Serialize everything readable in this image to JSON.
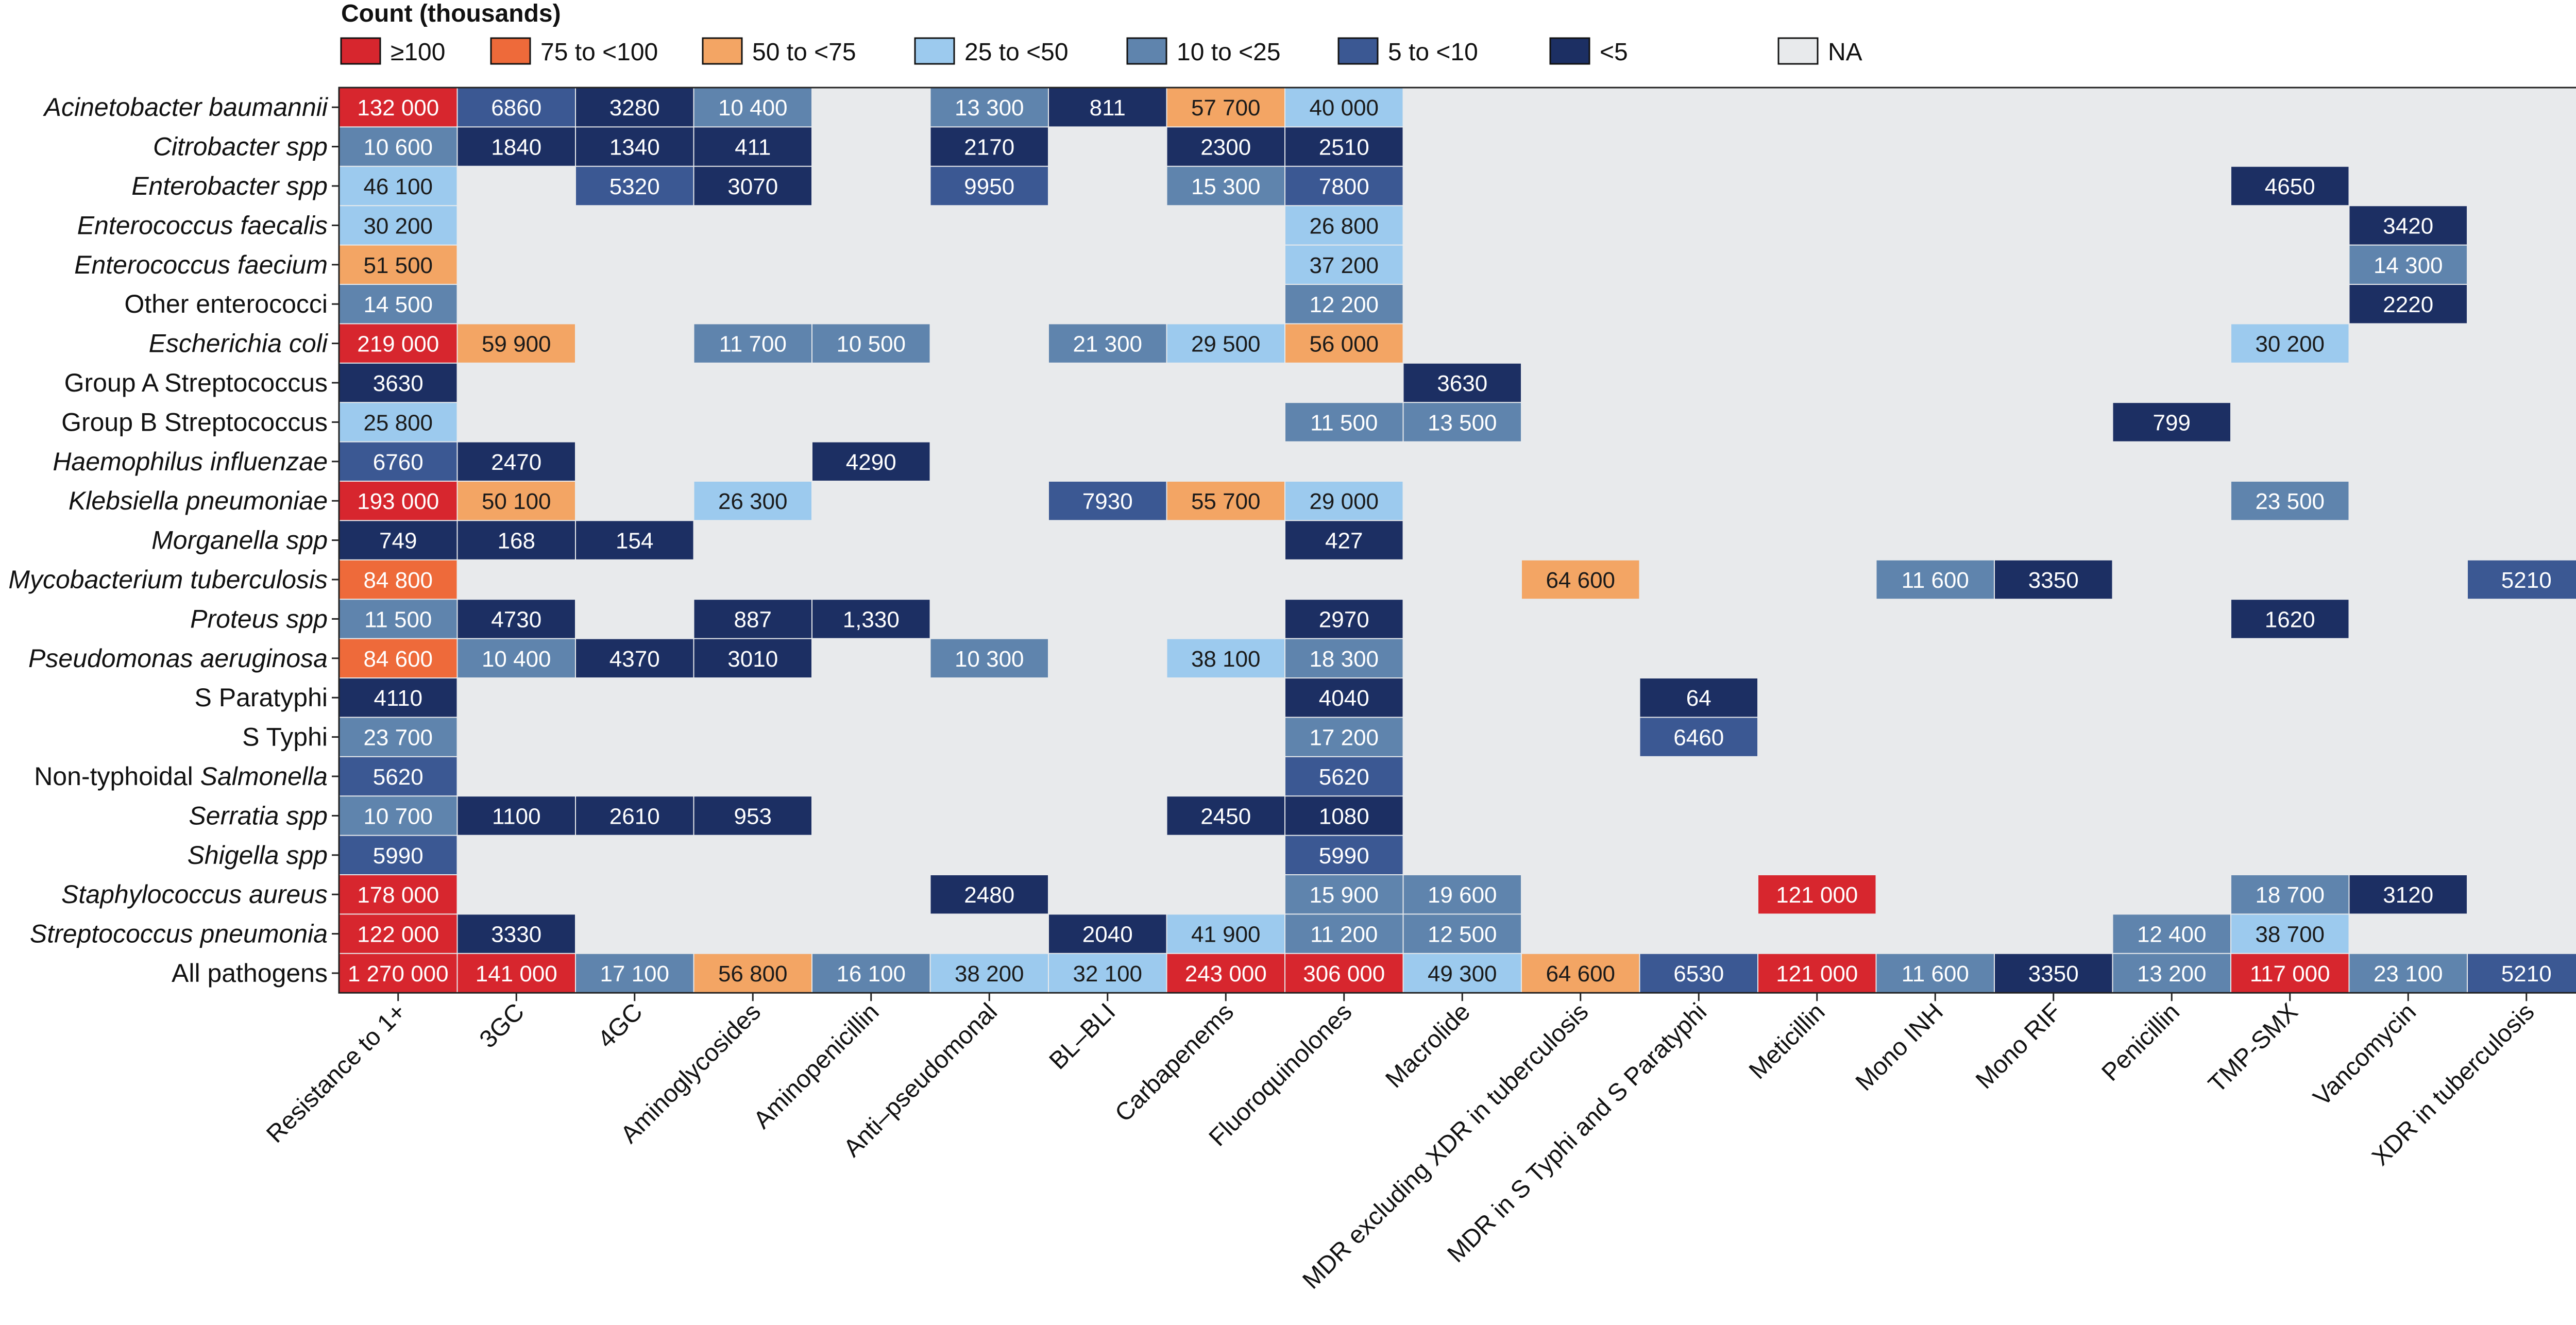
{
  "chart_data": {
    "type": "heatmap",
    "legend": {
      "title": "Count (thousands)",
      "position": "top",
      "items": [
        {
          "label": "≥100",
          "color": "#d7262e"
        },
        {
          "label": "75 to <100",
          "color": "#ee6a3a"
        },
        {
          "label": "50 to <75",
          "color": "#f3a564"
        },
        {
          "label": "25 to <50",
          "color": "#9ccaee"
        },
        {
          "label": "10 to <25",
          "color": "#5f84ad"
        },
        {
          "label": "5 to <10",
          "color": "#3b5893"
        },
        {
          "label": "<5",
          "color": "#1c2f63"
        },
        {
          "label": "NA",
          "color": "#e8eaec"
        }
      ]
    },
    "columns": [
      "Resistance to 1+",
      "3GC",
      "4GC",
      "Aminoglycosides",
      "Aminopenicillin",
      "Anti–pseudomonal",
      "BL–BLI",
      "Carbapenems",
      "Fluoroquinolones",
      "Macrolide",
      "MDR excluding XDR in tuberculosis",
      "MDR in S Typhi and S Paratyphi",
      "Meticillin",
      "Mono INH",
      "Mono RIF",
      "Penicillin",
      "TMP-SMX",
      "Vancomycin",
      "XDR in tuberculosis"
    ],
    "rows": [
      {
        "name": "Acinetobacter baumannii",
        "italic": true,
        "cells": [
          {
            "col": 0,
            "label": "132 000",
            "value": 132000
          },
          {
            "col": 1,
            "label": "6860",
            "value": 6860
          },
          {
            "col": 2,
            "label": "3280",
            "value": 3280
          },
          {
            "col": 3,
            "label": "10 400",
            "value": 10400
          },
          {
            "col": 5,
            "label": "13 300",
            "value": 13300
          },
          {
            "col": 6,
            "label": "811",
            "value": 811
          },
          {
            "col": 7,
            "label": "57 700",
            "value": 57700
          },
          {
            "col": 8,
            "label": "40 000",
            "value": 40000
          }
        ]
      },
      {
        "name": "Citrobacter spp",
        "italic": true,
        "cells": [
          {
            "col": 0,
            "label": "10 600",
            "value": 10600
          },
          {
            "col": 1,
            "label": "1840",
            "value": 1840
          },
          {
            "col": 2,
            "label": "1340",
            "value": 1340
          },
          {
            "col": 3,
            "label": "411",
            "value": 411
          },
          {
            "col": 5,
            "label": "2170",
            "value": 2170
          },
          {
            "col": 7,
            "label": "2300",
            "value": 2300
          },
          {
            "col": 8,
            "label": "2510",
            "value": 2510
          }
        ]
      },
      {
        "name": "Enterobacter spp",
        "italic": true,
        "cells": [
          {
            "col": 0,
            "label": "46 100",
            "value": 46100
          },
          {
            "col": 2,
            "label": "5320",
            "value": 5320
          },
          {
            "col": 3,
            "label": "3070",
            "value": 3070
          },
          {
            "col": 5,
            "label": "9950",
            "value": 9950
          },
          {
            "col": 7,
            "label": "15 300",
            "value": 15300
          },
          {
            "col": 8,
            "label": "7800",
            "value": 7800
          },
          {
            "col": 16,
            "label": "4650",
            "value": 4650
          }
        ]
      },
      {
        "name": "Enterococcus faecalis",
        "italic": true,
        "cells": [
          {
            "col": 0,
            "label": "30 200",
            "value": 30200
          },
          {
            "col": 8,
            "label": "26 800",
            "value": 26800
          },
          {
            "col": 17,
            "label": "3420",
            "value": 3420
          }
        ]
      },
      {
        "name": "Enterococcus faecium",
        "italic": true,
        "cells": [
          {
            "col": 0,
            "label": "51 500",
            "value": 51500
          },
          {
            "col": 8,
            "label": "37 200",
            "value": 37200
          },
          {
            "col": 17,
            "label": "14 300",
            "value": 14300
          }
        ]
      },
      {
        "name": "Other enterococci",
        "italic": false,
        "cells": [
          {
            "col": 0,
            "label": "14 500",
            "value": 14500
          },
          {
            "col": 8,
            "label": "12 200",
            "value": 12200
          },
          {
            "col": 17,
            "label": "2220",
            "value": 2220
          }
        ]
      },
      {
        "name": "Escherichia coli",
        "italic": true,
        "cells": [
          {
            "col": 0,
            "label": "219 000",
            "value": 219000
          },
          {
            "col": 1,
            "label": "59 900",
            "value": 59900
          },
          {
            "col": 3,
            "label": "11 700",
            "value": 11700
          },
          {
            "col": 4,
            "label": "10 500",
            "value": 10500
          },
          {
            "col": 6,
            "label": "21 300",
            "value": 21300
          },
          {
            "col": 7,
            "label": "29 500",
            "value": 29500
          },
          {
            "col": 8,
            "label": "56 000",
            "value": 56000
          },
          {
            "col": 16,
            "label": "30 200",
            "value": 30200
          }
        ]
      },
      {
        "name": "Group A Streptococcus",
        "italic": false,
        "cells": [
          {
            "col": 0,
            "label": "3630",
            "value": 3630
          },
          {
            "col": 9,
            "label": "3630",
            "value": 3630
          }
        ]
      },
      {
        "name": "Group B Streptococcus",
        "italic": false,
        "cells": [
          {
            "col": 0,
            "label": "25 800",
            "value": 25800
          },
          {
            "col": 8,
            "label": "11 500",
            "value": 11500
          },
          {
            "col": 9,
            "label": "13 500",
            "value": 13500
          },
          {
            "col": 15,
            "label": "799",
            "value": 799
          }
        ]
      },
      {
        "name": "Haemophilus influenzae",
        "italic": true,
        "cells": [
          {
            "col": 0,
            "label": "6760",
            "value": 6760
          },
          {
            "col": 1,
            "label": "2470",
            "value": 2470
          },
          {
            "col": 4,
            "label": "4290",
            "value": 4290
          }
        ]
      },
      {
        "name": "Klebsiella pneumoniae",
        "italic": true,
        "cells": [
          {
            "col": 0,
            "label": "193 000",
            "value": 193000
          },
          {
            "col": 1,
            "label": "50 100",
            "value": 50100
          },
          {
            "col": 3,
            "label": "26 300",
            "value": 26300
          },
          {
            "col": 6,
            "label": "7930",
            "value": 7930
          },
          {
            "col": 7,
            "label": "55 700",
            "value": 55700
          },
          {
            "col": 8,
            "label": "29 000",
            "value": 29000
          },
          {
            "col": 16,
            "label": "23 500",
            "value": 23500
          }
        ]
      },
      {
        "name": "Morganella spp",
        "italic": true,
        "cells": [
          {
            "col": 0,
            "label": "749",
            "value": 749
          },
          {
            "col": 1,
            "label": "168",
            "value": 168
          },
          {
            "col": 2,
            "label": "154",
            "value": 154
          },
          {
            "col": 8,
            "label": "427",
            "value": 427
          }
        ]
      },
      {
        "name": "Mycobacterium tuberculosis",
        "italic": true,
        "cells": [
          {
            "col": 0,
            "label": "84 800",
            "value": 84800
          },
          {
            "col": 10,
            "label": "64 600",
            "value": 64600
          },
          {
            "col": 13,
            "label": "11 600",
            "value": 11600
          },
          {
            "col": 14,
            "label": "3350",
            "value": 3350
          },
          {
            "col": 18,
            "label": "5210",
            "value": 5210
          }
        ]
      },
      {
        "name": "Proteus spp",
        "italic": true,
        "cells": [
          {
            "col": 0,
            "label": "11 500",
            "value": 11500
          },
          {
            "col": 1,
            "label": "4730",
            "value": 4730
          },
          {
            "col": 3,
            "label": "887",
            "value": 887
          },
          {
            "col": 4,
            "label": "1,330",
            "value": 1330
          },
          {
            "col": 8,
            "label": "2970",
            "value": 2970
          },
          {
            "col": 16,
            "label": "1620",
            "value": 1620
          }
        ]
      },
      {
        "name": "Pseudomonas aeruginosa",
        "italic": true,
        "cells": [
          {
            "col": 0,
            "label": "84 600",
            "value": 84600
          },
          {
            "col": 1,
            "label": "10 400",
            "value": 10400
          },
          {
            "col": 2,
            "label": "4370",
            "value": 4370
          },
          {
            "col": 3,
            "label": "3010",
            "value": 3010
          },
          {
            "col": 5,
            "label": "10 300",
            "value": 10300
          },
          {
            "col": 7,
            "label": "38 100",
            "value": 38100
          },
          {
            "col": 8,
            "label": "18 300",
            "value": 18300
          }
        ]
      },
      {
        "name": "S Paratyphi",
        "italic": false,
        "cells": [
          {
            "col": 0,
            "label": "4110",
            "value": 4110
          },
          {
            "col": 8,
            "label": "4040",
            "value": 4040
          },
          {
            "col": 11,
            "label": "64",
            "value": 64
          }
        ]
      },
      {
        "name": "S Typhi",
        "italic": false,
        "cells": [
          {
            "col": 0,
            "label": "23 700",
            "value": 23700
          },
          {
            "col": 8,
            "label": "17 200",
            "value": 17200
          },
          {
            "col": 11,
            "label": "6460",
            "value": 6460
          }
        ]
      },
      {
        "name": "Non-typhoidal Salmonella",
        "italic": false,
        "italicPart": "Salmonella",
        "cells": [
          {
            "col": 0,
            "label": "5620",
            "value": 5620
          },
          {
            "col": 8,
            "label": "5620",
            "value": 5620
          }
        ]
      },
      {
        "name": "Serratia spp",
        "italic": true,
        "cells": [
          {
            "col": 0,
            "label": "10 700",
            "value": 10700
          },
          {
            "col": 1,
            "label": "1100",
            "value": 1100
          },
          {
            "col": 2,
            "label": "2610",
            "value": 2610
          },
          {
            "col": 3,
            "label": "953",
            "value": 953
          },
          {
            "col": 7,
            "label": "2450",
            "value": 2450
          },
          {
            "col": 8,
            "label": "1080",
            "value": 1080
          }
        ]
      },
      {
        "name": "Shigella spp",
        "italic": true,
        "cells": [
          {
            "col": 0,
            "label": "5990",
            "value": 5990
          },
          {
            "col": 8,
            "label": "5990",
            "value": 5990
          }
        ]
      },
      {
        "name": "Staphylococcus aureus",
        "italic": true,
        "cells": [
          {
            "col": 0,
            "label": "178 000",
            "value": 178000
          },
          {
            "col": 5,
            "label": "2480",
            "value": 2480
          },
          {
            "col": 8,
            "label": "15 900",
            "value": 15900
          },
          {
            "col": 9,
            "label": "19 600",
            "value": 19600
          },
          {
            "col": 12,
            "label": "121 000",
            "value": 121000
          },
          {
            "col": 16,
            "label": "18 700",
            "value": 18700
          },
          {
            "col": 17,
            "label": "3120",
            "value": 3120
          }
        ]
      },
      {
        "name": "Streptococcus pneumonia",
        "italic": true,
        "cells": [
          {
            "col": 0,
            "label": "122 000",
            "value": 122000
          },
          {
            "col": 1,
            "label": "3330",
            "value": 3330
          },
          {
            "col": 6,
            "label": "2040",
            "value": 2040
          },
          {
            "col": 7,
            "label": "41 900",
            "value": 41900
          },
          {
            "col": 8,
            "label": "11 200",
            "value": 11200
          },
          {
            "col": 9,
            "label": "12 500",
            "value": 12500
          },
          {
            "col": 15,
            "label": "12 400",
            "value": 12400
          },
          {
            "col": 16,
            "label": "38 700",
            "value": 38700
          }
        ]
      },
      {
        "name": "All pathogens",
        "italic": false,
        "cells": [
          {
            "col": 0,
            "label": "1 270 000",
            "value": 1270000
          },
          {
            "col": 1,
            "label": "141 000",
            "value": 141000
          },
          {
            "col": 2,
            "label": "17 100",
            "value": 17100
          },
          {
            "col": 3,
            "label": "56 800",
            "value": 56800
          },
          {
            "col": 4,
            "label": "16 100",
            "value": 16100
          },
          {
            "col": 5,
            "label": "38 200",
            "value": 38200
          },
          {
            "col": 6,
            "label": "32 100",
            "value": 32100
          },
          {
            "col": 7,
            "label": "243 000",
            "value": 243000
          },
          {
            "col": 8,
            "label": "306 000",
            "value": 306000
          },
          {
            "col": 9,
            "label": "49 300",
            "value": 49300
          },
          {
            "col": 10,
            "label": "64 600",
            "value": 64600
          },
          {
            "col": 11,
            "label": "6530",
            "value": 6530
          },
          {
            "col": 12,
            "label": "121 000",
            "value": 121000
          },
          {
            "col": 13,
            "label": "11 600",
            "value": 11600
          },
          {
            "col": 14,
            "label": "3350",
            "value": 3350
          },
          {
            "col": 15,
            "label": "13 200",
            "value": 13200
          },
          {
            "col": 16,
            "label": "117 000",
            "value": 117000
          },
          {
            "col": 17,
            "label": "23 100",
            "value": 23100
          },
          {
            "col": 18,
            "label": "5210",
            "value": 5210
          }
        ]
      }
    ]
  }
}
